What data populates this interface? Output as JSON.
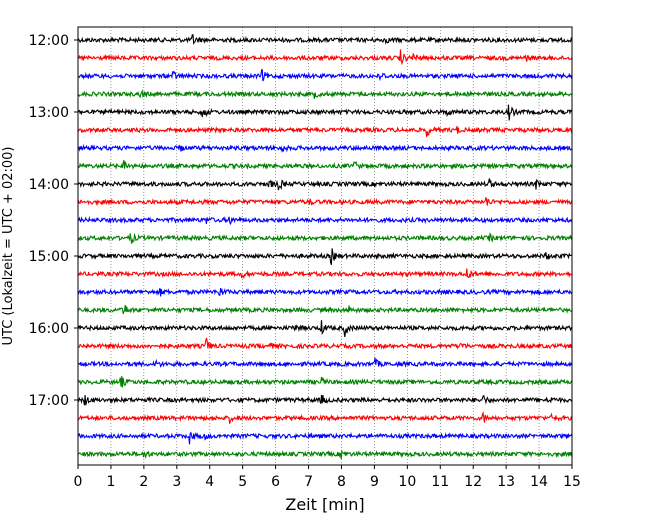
{
  "chart_data": {
    "type": "line",
    "title": "",
    "xlabel": "Zeit  [min]",
    "ylabel": "UTC (Lokalzeit = UTC + 02:00)",
    "xlim": [
      0,
      15
    ],
    "x_ticks": [
      0,
      1,
      2,
      3,
      4,
      5,
      6,
      7,
      8,
      9,
      10,
      11,
      12,
      13,
      14,
      15
    ],
    "x_tick_labels": [
      "0",
      "1",
      "2",
      "3",
      "4",
      "5",
      "6",
      "7",
      "8",
      "9",
      "10",
      "11",
      "12",
      "13",
      "14",
      "15"
    ],
    "y_tick_labels": [
      "12:00",
      "13:00",
      "14:00",
      "15:00",
      "16:00",
      "17:00"
    ],
    "grid": "vertical dotted at each minute",
    "trace_colors": [
      "#000000",
      "#ff0000",
      "#0000ff",
      "#008000"
    ],
    "traces_start": "12:00",
    "trace_interval_min": 15,
    "trace_count": 24,
    "events": [
      [
        [
          3.5,
          0.7
        ],
        [
          9.3,
          0.5
        ]
      ],
      [
        [
          9.8,
          1.0
        ],
        [
          10.2,
          0.6
        ],
        [
          13.6,
          0.4
        ]
      ],
      [
        [
          2.9,
          0.5
        ],
        [
          5.6,
          0.7
        ],
        [
          9.2,
          0.5
        ]
      ],
      [
        [
          1.9,
          0.4
        ],
        [
          7.2,
          0.4
        ]
      ],
      [
        [
          3.8,
          0.9
        ],
        [
          13.1,
          1.0
        ],
        [
          11.2,
          0.4
        ]
      ],
      [
        [
          10.6,
          0.8
        ],
        [
          11.5,
          0.4
        ]
      ],
      [
        [
          3.1,
          0.4
        ],
        [
          6.2,
          0.4
        ]
      ],
      [
        [
          1.4,
          0.8
        ],
        [
          8.4,
          0.5
        ]
      ],
      [
        [
          5.8,
          0.6
        ],
        [
          6.1,
          0.8
        ],
        [
          12.5,
          0.6
        ],
        [
          13.9,
          0.6
        ]
      ],
      [
        [
          12.4,
          0.7
        ],
        [
          7.0,
          0.4
        ]
      ],
      [
        [
          4.6,
          0.5
        ],
        [
          3.9,
          0.4
        ]
      ],
      [
        [
          1.6,
          0.8
        ],
        [
          12.5,
          0.4
        ]
      ],
      [
        [
          7.7,
          1.0
        ],
        [
          14.2,
          0.6
        ]
      ],
      [
        [
          11.8,
          1.0
        ],
        [
          5.0,
          0.4
        ]
      ],
      [
        [
          4.3,
          0.6
        ],
        [
          2.5,
          0.4
        ]
      ],
      [
        [
          1.4,
          0.9
        ],
        [
          8.2,
          0.6
        ]
      ],
      [
        [
          7.4,
          0.9
        ],
        [
          8.1,
          1.0
        ],
        [
          6.6,
          0.5
        ]
      ],
      [
        [
          3.9,
          1.0
        ],
        [
          11.6,
          0.6
        ],
        [
          5.8,
          0.4
        ]
      ],
      [
        [
          9.0,
          0.8
        ],
        [
          2.4,
          0.4
        ]
      ],
      [
        [
          1.3,
          0.9
        ],
        [
          7.4,
          0.5
        ]
      ],
      [
        [
          0.2,
          0.8
        ],
        [
          7.4,
          0.7
        ],
        [
          12.3,
          0.6
        ],
        [
          14.3,
          0.5
        ]
      ],
      [
        [
          4.6,
          0.6
        ],
        [
          12.3,
          0.7
        ],
        [
          14.4,
          0.6
        ]
      ],
      [
        [
          3.4,
          0.9
        ],
        [
          3.8,
          0.5
        ]
      ],
      [
        [
          2.0,
          0.6
        ],
        [
          8.0,
          0.5
        ]
      ]
    ]
  }
}
